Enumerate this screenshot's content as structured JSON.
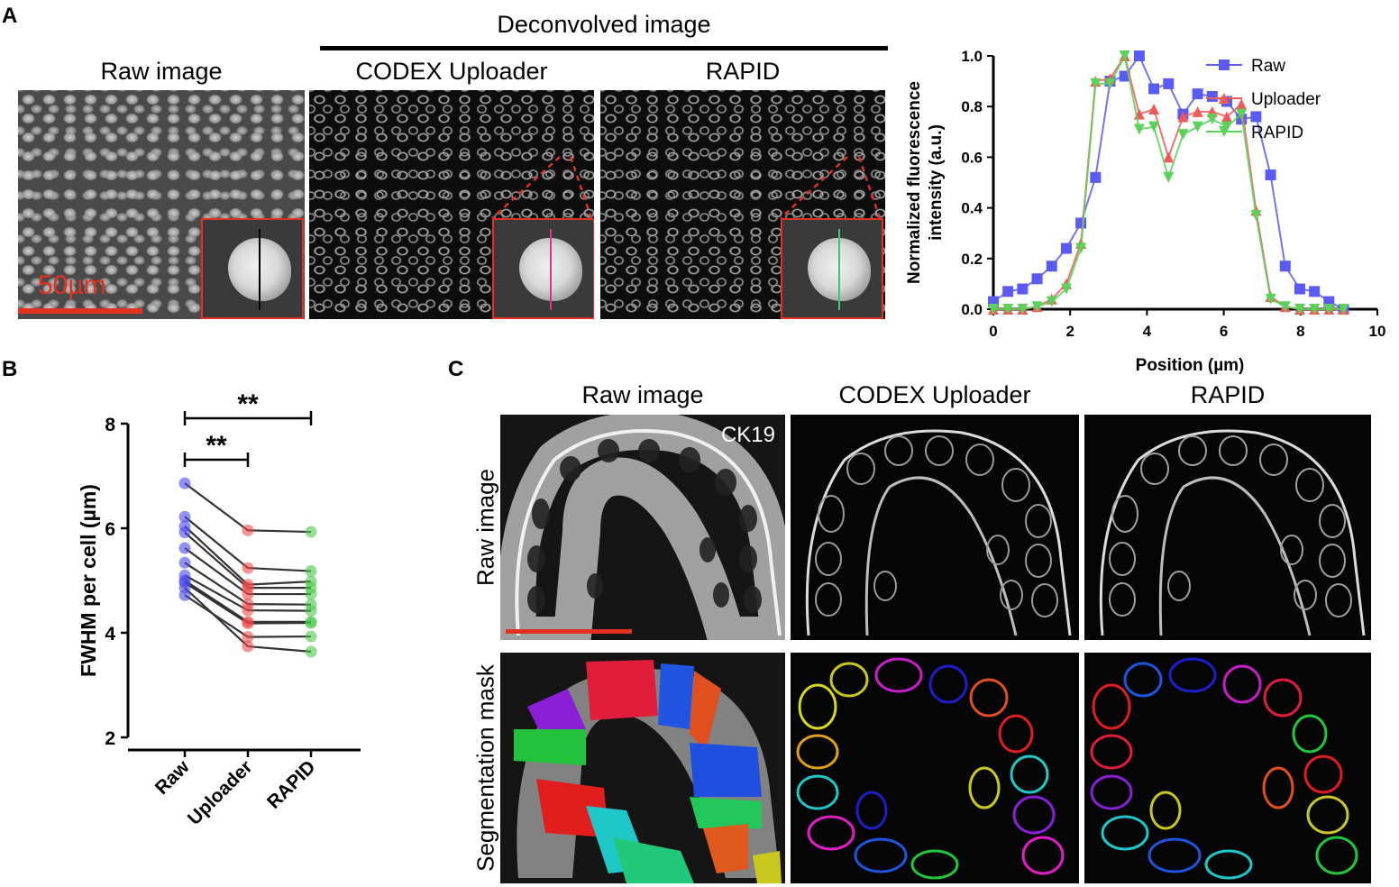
{
  "panels": {
    "a": "A",
    "b": "B",
    "c": "C"
  },
  "panel_a": {
    "header_group": "Deconvolved image",
    "col_raw": "Raw image",
    "col_uploader": "CODEX Uploader",
    "col_rapid": "RAPID",
    "scale_bar": "50µm",
    "line_colors": {
      "raw": "#000000",
      "uploader": "#e0328c",
      "rapid": "#2ecc71"
    }
  },
  "panel_c": {
    "col_raw": "Raw image",
    "col_uploader": "CODEX Uploader",
    "col_rapid": "RAPID",
    "row_raw": "Raw image",
    "row_seg": "Segmentation mask",
    "marker": "CK19"
  },
  "chart_data": [
    {
      "type": "line",
      "xlabel": "Position (µm)",
      "ylabel": "Normalized fluorescence intensity (a.u.)",
      "ylabel_lines": [
        "Normalized fluorescence",
        "intensity (a.u.)"
      ],
      "xlim": [
        0,
        10
      ],
      "ylim": [
        0,
        1.0
      ],
      "xticks": [
        "0",
        "2",
        "4",
        "6",
        "8",
        "10"
      ],
      "yticks": [
        "0.0",
        "0.2",
        "0.4",
        "0.6",
        "0.8",
        "1.0"
      ],
      "legend_position": "top-right",
      "series": [
        {
          "name": "Raw",
          "color": "#5a5af5",
          "marker": "square",
          "x": [
            0,
            0.38,
            0.76,
            1.14,
            1.52,
            1.9,
            2.28,
            2.66,
            3.04,
            3.42,
            3.8,
            4.18,
            4.56,
            4.94,
            5.32,
            5.7,
            6.08,
            6.46,
            6.84,
            7.22,
            7.6,
            7.98,
            8.36,
            8.74,
            9.12
          ],
          "y": [
            0.03,
            0.07,
            0.08,
            0.12,
            0.17,
            0.24,
            0.34,
            0.52,
            0.9,
            0.92,
            1.0,
            0.87,
            0.89,
            0.77,
            0.85,
            0.84,
            0.82,
            0.75,
            0.76,
            0.53,
            0.17,
            0.08,
            0.07,
            0.03,
            0.0
          ]
        },
        {
          "name": "Uploader",
          "color": "#f05a5a",
          "marker": "triangle-up",
          "x": [
            0,
            0.38,
            0.76,
            1.14,
            1.52,
            1.9,
            2.28,
            2.66,
            3.04,
            3.42,
            3.8,
            4.18,
            4.56,
            4.94,
            5.32,
            5.7,
            6.08,
            6.46,
            6.84,
            7.22,
            7.6,
            7.98,
            8.36,
            8.74,
            9.12
          ],
          "y": [
            0,
            0,
            0,
            0.01,
            0.04,
            0.1,
            0.26,
            0.9,
            0.91,
            1.0,
            0.77,
            0.79,
            0.6,
            0.76,
            0.78,
            0.78,
            0.76,
            0.81,
            0.39,
            0.05,
            0.01,
            0,
            0,
            0,
            0
          ]
        },
        {
          "name": "RAPID",
          "color": "#5ad25a",
          "marker": "triangle-down",
          "x": [
            0,
            0.38,
            0.76,
            1.14,
            1.52,
            1.9,
            2.28,
            2.66,
            3.04,
            3.42,
            3.8,
            4.18,
            4.56,
            4.94,
            5.32,
            5.7,
            6.08,
            6.46,
            6.84,
            7.22,
            7.6,
            7.98,
            8.36,
            8.74,
            9.12
          ],
          "y": [
            0,
            0,
            0,
            0.01,
            0.03,
            0.08,
            0.24,
            0.89,
            0.89,
            1.0,
            0.71,
            0.72,
            0.52,
            0.69,
            0.72,
            0.75,
            0.72,
            0.77,
            0.37,
            0.04,
            0.01,
            0,
            0,
            0,
            0
          ]
        }
      ]
    },
    {
      "type": "scatter",
      "ylabel": "FWHM per cell (µm)",
      "ylim": [
        2,
        8
      ],
      "yticks": [
        "2",
        "4",
        "6",
        "8"
      ],
      "categories": [
        "Raw",
        "Uploader",
        "RAPID"
      ],
      "colors": [
        "#4a4aeb",
        "#ee4a4a",
        "#4ac84a"
      ],
      "paired_values": [
        [
          6.86,
          5.96,
          5.93
        ],
        [
          6.22,
          5.24,
          5.18
        ],
        [
          6.04,
          4.92,
          4.98
        ],
        [
          5.92,
          4.86,
          4.86
        ],
        [
          5.62,
          4.74,
          4.74
        ],
        [
          5.34,
          4.55,
          4.54
        ],
        [
          5.1,
          4.43,
          4.42
        ],
        [
          5.0,
          4.21,
          4.21
        ],
        [
          4.96,
          4.18,
          4.19
        ],
        [
          4.72,
          3.92,
          3.93
        ],
        [
          4.86,
          3.74,
          3.64
        ]
      ],
      "significance": [
        {
          "from": "Raw",
          "to": "RAPID",
          "label": "**"
        },
        {
          "from": "Raw",
          "to": "Uploader",
          "label": "**"
        }
      ]
    }
  ]
}
